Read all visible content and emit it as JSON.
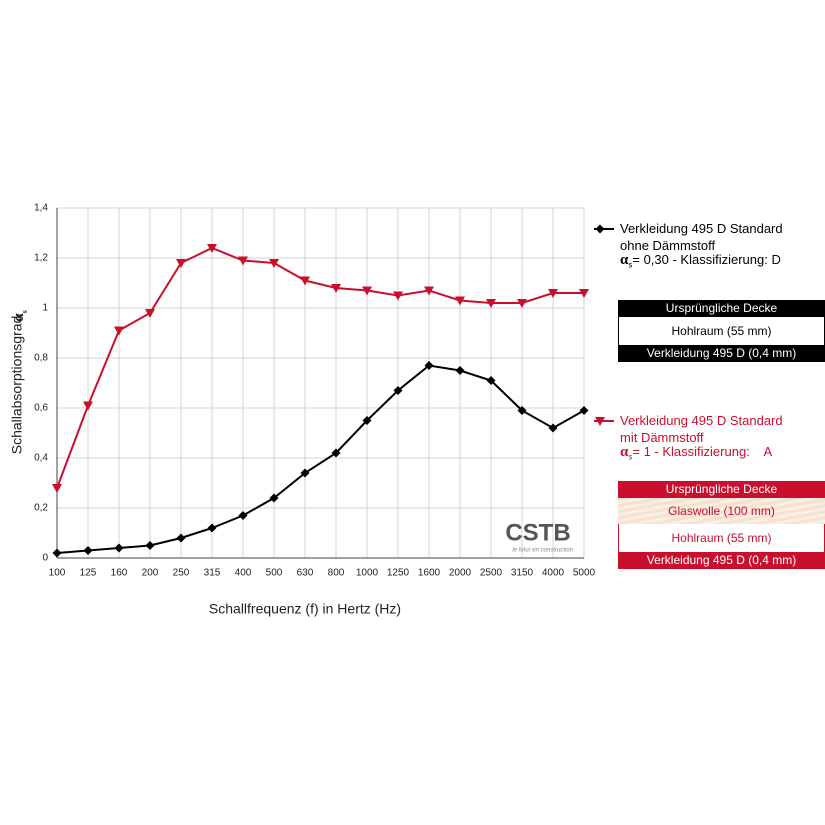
{
  "chart_data": {
    "type": "line",
    "ylabel": "Schallabsorptionsgrad",
    "ylabel_symbol": "α",
    "ylabel_subscript": "s",
    "xlabel": "Schallfrequenz (f) in Hertz (Hz)",
    "categories": [
      "100",
      "125",
      "160",
      "200",
      "250",
      "315",
      "400",
      "500",
      "630",
      "800",
      "1000",
      "1250",
      "1600",
      "2000",
      "2500",
      "3150",
      "4000",
      "5000"
    ],
    "ylim": [
      0,
      1.4
    ],
    "yticks": [
      0,
      {
        "value": 0.2,
        "label": "0,2"
      },
      {
        "value": 0.4,
        "label": "0,4"
      },
      {
        "value": 0.6,
        "label": "0,6"
      },
      {
        "value": 0.8,
        "label": "0,8"
      },
      1,
      {
        "value": 1.2,
        "label": "1,2"
      },
      {
        "value": 1.4,
        "label": "1,4"
      }
    ],
    "grid": true,
    "logo": "CSTB",
    "logo_tagline": "le futur en construction",
    "series": [
      {
        "name": "Verkleidung 495 D Standard ohne Dämmstoff",
        "color": "#000000",
        "marker": "diamond",
        "rating_symbol": "α",
        "rating_subscript": "s",
        "rating_text": "= 0,30 - Klassifizierung: D",
        "layers": [
          "Ursprüngliche Decke",
          "Hohlraum (55 mm)",
          "Verkleidung 495 D (0,4 mm)"
        ],
        "values": [
          0.02,
          0.03,
          0.04,
          0.05,
          0.08,
          0.12,
          0.17,
          0.24,
          0.34,
          0.42,
          0.55,
          0.67,
          0.77,
          0.75,
          0.71,
          0.59,
          0.52,
          0.59
        ]
      },
      {
        "name": "Verkleidung 495 D Standard mit Dämmstoff",
        "color": "#c8102e",
        "marker": "triangle-down",
        "rating_symbol": "α",
        "rating_subscript": "s",
        "rating_text": "= 1 - Klassifizierung:    A",
        "layers": [
          "Ursprüngliche Decke",
          "Glaswolle (100 mm)",
          "Hohlraum (55 mm)",
          "Verkleidung 495 D (0,4 mm)"
        ],
        "values": [
          0.28,
          0.61,
          0.91,
          0.98,
          1.18,
          1.24,
          1.19,
          1.18,
          1.11,
          1.08,
          1.07,
          1.05,
          1.07,
          1.03,
          1.02,
          1.02,
          1.06,
          1.06
        ]
      }
    ]
  }
}
